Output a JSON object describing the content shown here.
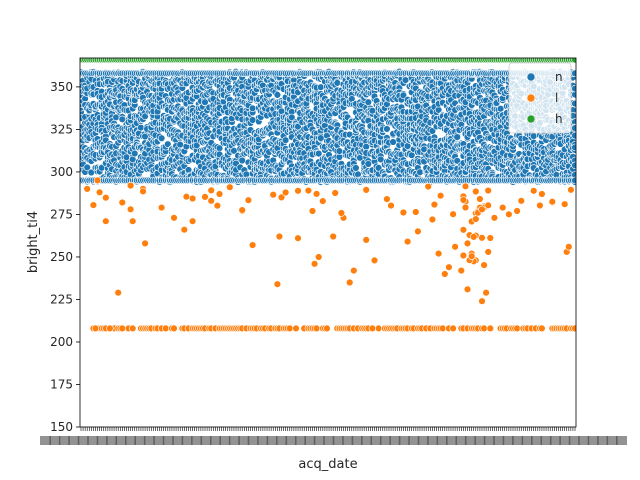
{
  "chart_data": {
    "type": "scatter",
    "title": "",
    "xlabel": "acq_date",
    "ylabel": "bright_ti4",
    "ylim": [
      150,
      367
    ],
    "yticks": [
      150,
      175,
      200,
      225,
      250,
      275,
      300,
      325,
      350
    ],
    "x_axis": "categorical dates; tick labels overlap and are unreadable",
    "grid": false,
    "legend_position": "top-right",
    "series": [
      {
        "name": "n",
        "color": "#1f77b4",
        "description": "dense band of points across all dates",
        "y_range": [
          294,
          359
        ]
      },
      {
        "name": "l",
        "color": "#ff7f0e",
        "description": "scattered points below the n band plus a row at the floor value",
        "floor_value": 208,
        "y_range": [
          208,
          310
        ],
        "example_points": [
          {
            "x": 6,
            "y": 280.5
          },
          {
            "x": 7,
            "y": 208
          },
          {
            "x": 8,
            "y": 295
          },
          {
            "x": 9,
            "y": 288
          },
          {
            "x": 12,
            "y": 271
          },
          {
            "x": 14,
            "y": 208
          },
          {
            "x": 18,
            "y": 229
          },
          {
            "x": 20,
            "y": 282
          },
          {
            "x": 24,
            "y": 278
          },
          {
            "x": 25,
            "y": 271
          },
          {
            "x": 30,
            "y": 290
          },
          {
            "x": 31,
            "y": 258
          },
          {
            "x": 45,
            "y": 273
          },
          {
            "x": 50,
            "y": 266
          },
          {
            "x": 54,
            "y": 271
          },
          {
            "x": 63,
            "y": 283
          },
          {
            "x": 67,
            "y": 287
          },
          {
            "x": 72,
            "y": 291
          },
          {
            "x": 78,
            "y": 277
          },
          {
            "x": 83,
            "y": 257
          },
          {
            "x": 95,
            "y": 234
          },
          {
            "x": 96,
            "y": 262
          },
          {
            "x": 97,
            "y": 285
          },
          {
            "x": 105,
            "y": 261
          },
          {
            "x": 110,
            "y": 289
          },
          {
            "x": 112,
            "y": 277
          },
          {
            "x": 113,
            "y": 246
          },
          {
            "x": 115,
            "y": 250
          },
          {
            "x": 122,
            "y": 262
          },
          {
            "x": 127,
            "y": 273
          },
          {
            "x": 130,
            "y": 235
          },
          {
            "x": 132,
            "y": 242
          },
          {
            "x": 138,
            "y": 260
          },
          {
            "x": 142,
            "y": 248
          },
          {
            "x": 148,
            "y": 284
          },
          {
            "x": 158,
            "y": 259
          },
          {
            "x": 163,
            "y": 265
          },
          {
            "x": 170,
            "y": 272
          },
          {
            "x": 173,
            "y": 252
          },
          {
            "x": 176,
            "y": 240
          },
          {
            "x": 178,
            "y": 244
          },
          {
            "x": 181,
            "y": 256
          },
          {
            "x": 184,
            "y": 242
          },
          {
            "x": 187,
            "y": 231
          },
          {
            "x": 189,
            "y": 252
          },
          {
            "x": 191,
            "y": 248
          },
          {
            "x": 194,
            "y": 224
          },
          {
            "x": 196,
            "y": 229
          },
          {
            "x": 197,
            "y": 253
          },
          {
            "x": 200,
            "y": 273
          },
          {
            "x": 204,
            "y": 279
          },
          {
            "x": 211,
            "y": 277
          },
          {
            "x": 213,
            "y": 283
          },
          {
            "x": 223,
            "y": 287
          },
          {
            "x": 228,
            "y": 282
          },
          {
            "x": 234,
            "y": 281
          },
          {
            "x": 235,
            "y": 253
          },
          {
            "x": 236,
            "y": 256
          }
        ]
      },
      {
        "name": "h",
        "color": "#2ca02c",
        "description": "row of points at the top of the plot",
        "y_value": 366
      }
    ]
  }
}
